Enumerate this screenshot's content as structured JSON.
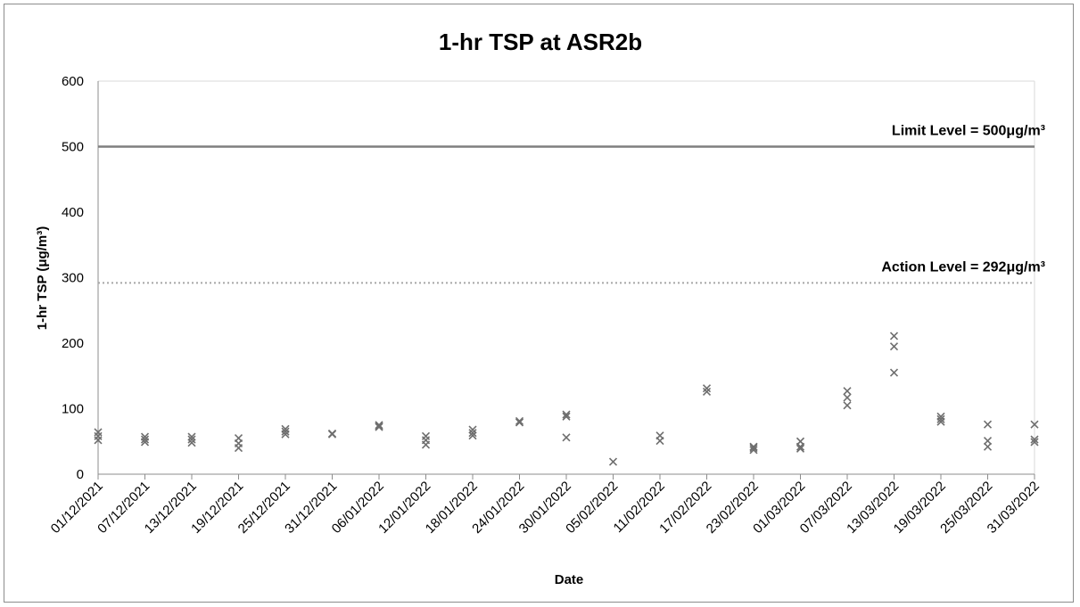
{
  "chart_data": {
    "type": "scatter",
    "title": "1-hr TSP at ASR2b",
    "xlabel": "Date",
    "ylabel": "1-hr TSP (μg/m³)",
    "ylim": [
      0,
      600
    ],
    "yticks": [
      0,
      100,
      200,
      300,
      400,
      500,
      600
    ],
    "xlim": [
      "01/12/2021",
      "31/03/2022"
    ],
    "xticks": [
      "01/12/2021",
      "07/12/2021",
      "13/12/2021",
      "19/12/2021",
      "25/12/2021",
      "31/12/2021",
      "06/01/2022",
      "12/01/2022",
      "18/01/2022",
      "24/01/2022",
      "30/01/2022",
      "05/02/2022",
      "11/02/2022",
      "17/02/2022",
      "23/02/2022",
      "01/03/2022",
      "07/03/2022",
      "13/03/2022",
      "19/03/2022",
      "25/03/2022",
      "31/03/2022"
    ],
    "grid": false,
    "legend": "none",
    "marker_color": "#6e6e6e",
    "reference_lines": [
      {
        "label": "Limit Level = 500μg/m³",
        "value": 500,
        "style": "solid",
        "color": "#7f7f7f"
      },
      {
        "label": "Action Level = 292μg/m³",
        "value": 292,
        "style": "dotted",
        "color": "#a6a6a6"
      }
    ],
    "series": [
      {
        "points": [
          {
            "date": "01/12/2021",
            "values": [
              64,
              58,
              52
            ]
          },
          {
            "date": "07/12/2021",
            "values": [
              57,
              53,
              49
            ]
          },
          {
            "date": "13/12/2021",
            "values": [
              57,
              53,
              48
            ]
          },
          {
            "date": "19/12/2021",
            "values": [
              55,
              47,
              40
            ]
          },
          {
            "date": "25/12/2021",
            "values": [
              69,
              65,
              61
            ]
          },
          {
            "date": "31/12/2021",
            "values": [
              62,
              61
            ]
          },
          {
            "date": "06/01/2022",
            "values": [
              75,
              73,
              72
            ]
          },
          {
            "date": "12/01/2022",
            "values": [
              58,
              52,
              45
            ]
          },
          {
            "date": "18/01/2022",
            "values": [
              68,
              63,
              59
            ]
          },
          {
            "date": "24/01/2022",
            "values": [
              81,
              79
            ]
          },
          {
            "date": "30/01/2022",
            "values": [
              91,
              88,
              56
            ]
          },
          {
            "date": "05/02/2022",
            "values": [
              19
            ]
          },
          {
            "date": "11/02/2022",
            "values": [
              59,
              51
            ]
          },
          {
            "date": "17/02/2022",
            "values": [
              131,
              126
            ]
          },
          {
            "date": "23/02/2022",
            "values": [
              42,
              40,
              37
            ]
          },
          {
            "date": "01/03/2022",
            "values": [
              50,
              42,
              39
            ]
          },
          {
            "date": "07/03/2022",
            "values": [
              127,
              117,
              105
            ]
          },
          {
            "date": "13/03/2022",
            "values": [
              211,
              195,
              155
            ]
          },
          {
            "date": "19/03/2022",
            "values": [
              88,
              84,
              80
            ]
          },
          {
            "date": "25/03/2022",
            "values": [
              76,
              51,
              42
            ]
          },
          {
            "date": "31/03/2022",
            "values": [
              76,
              53,
              49
            ]
          }
        ]
      }
    ]
  }
}
